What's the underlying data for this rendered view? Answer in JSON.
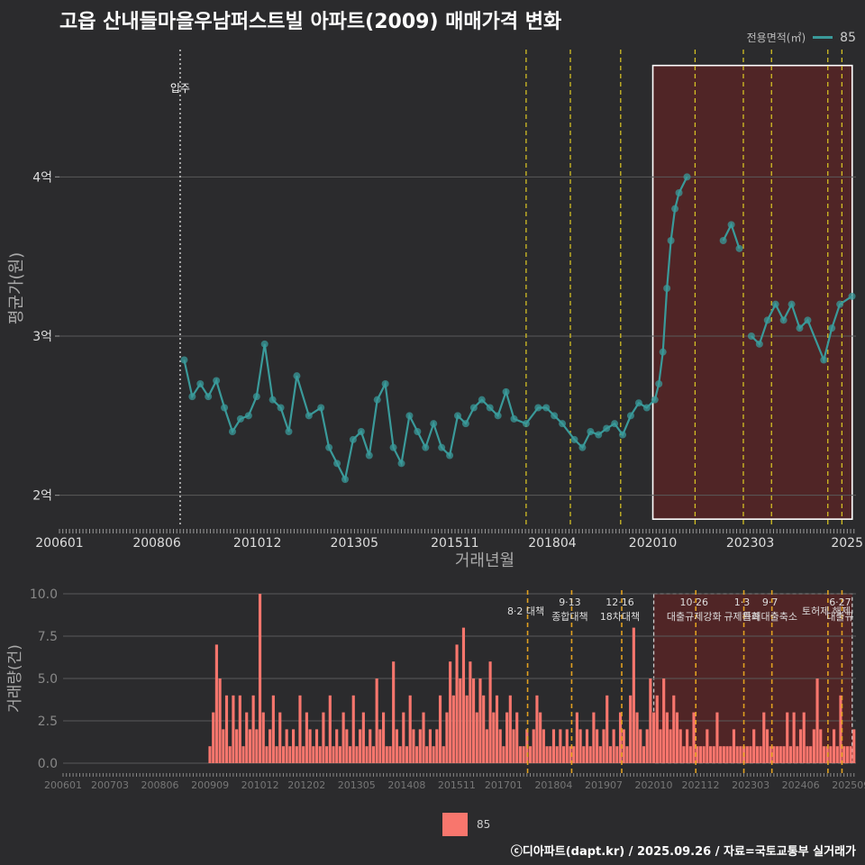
{
  "title": "고읍 산내들마을우남퍼스트빌 아파트(2009) 매매가격 변화",
  "legend": {
    "title": "전용면적(㎡)",
    "series_label": "85"
  },
  "credit": "ⓒ디아파트(dapt.kr) / 2025.09.26 / 자료=국토교통부 실거래가",
  "colors": {
    "background": "#2b2b2d",
    "price": "#3a9a9a",
    "volume": "#f8766d",
    "policy": "#d4c024",
    "highlight": "#5a2424",
    "mark": "#ff2222"
  },
  "chart_data": [
    {
      "type": "line",
      "title": "고읍 산내들마을우남퍼스트빌 아파트(2009) 매매가격 변화",
      "xlabel": "거래년월",
      "ylabel": "평균가(원)",
      "x_tick_labels": [
        "200601",
        "200806",
        "201012",
        "201305",
        "201511",
        "201804",
        "202010",
        "202303",
        "2025"
      ],
      "y_tick_labels": [
        "2억",
        "3억",
        "4억"
      ],
      "y_ticks": [
        2.0,
        3.0,
        4.0
      ],
      "ylim": [
        1.8,
        4.8
      ],
      "xlim": [
        2006.0,
        2025.8
      ],
      "grid": true,
      "annotation": {
        "text": "입주",
        "x": 2009.0
      },
      "highlight_range": [
        2020.75,
        2025.75
      ],
      "policy_dates": [
        2017.6,
        2018.7,
        2019.95,
        2021.8,
        2023.0,
        2023.7,
        2025.1,
        2025.45
      ],
      "series": [
        {
          "name": "85",
          "unit": "억원",
          "points": [
            [
              2009.1,
              2.85
            ],
            [
              2009.3,
              2.62
            ],
            [
              2009.5,
              2.7
            ],
            [
              2009.7,
              2.62
            ],
            [
              2009.9,
              2.72
            ],
            [
              2010.1,
              2.55
            ],
            [
              2010.3,
              2.4
            ],
            [
              2010.5,
              2.48
            ],
            [
              2010.7,
              2.5
            ],
            [
              2010.9,
              2.62
            ],
            [
              2011.1,
              2.95
            ],
            [
              2011.3,
              2.6
            ],
            [
              2011.5,
              2.55
            ],
            [
              2011.7,
              2.4
            ],
            [
              2011.9,
              2.75
            ],
            [
              2012.2,
              2.5
            ],
            [
              2012.5,
              2.55
            ],
            [
              2012.7,
              2.3
            ],
            [
              2012.9,
              2.2
            ],
            [
              2013.1,
              2.1
            ],
            [
              2013.3,
              2.35
            ],
            [
              2013.5,
              2.4
            ],
            [
              2013.7,
              2.25
            ],
            [
              2013.9,
              2.6
            ],
            [
              2014.1,
              2.7
            ],
            [
              2014.3,
              2.3
            ],
            [
              2014.5,
              2.2
            ],
            [
              2014.7,
              2.5
            ],
            [
              2014.9,
              2.4
            ],
            [
              2015.1,
              2.3
            ],
            [
              2015.3,
              2.45
            ],
            [
              2015.5,
              2.3
            ],
            [
              2015.7,
              2.25
            ],
            [
              2015.9,
              2.5
            ],
            [
              2016.1,
              2.45
            ],
            [
              2016.3,
              2.55
            ],
            [
              2016.5,
              2.6
            ],
            [
              2016.7,
              2.55
            ],
            [
              2016.9,
              2.5
            ],
            [
              2017.1,
              2.65
            ],
            [
              2017.3,
              2.48
            ],
            [
              2017.6,
              2.45
            ],
            [
              2017.9,
              2.55
            ],
            [
              2018.1,
              2.55
            ],
            [
              2018.3,
              2.5
            ],
            [
              2018.5,
              2.45
            ],
            [
              2018.8,
              2.35
            ],
            [
              2019.0,
              2.3
            ],
            [
              2019.2,
              2.4
            ],
            [
              2019.4,
              2.38
            ],
            [
              2019.6,
              2.42
            ],
            [
              2019.8,
              2.45
            ],
            [
              2020.0,
              2.38
            ],
            [
              2020.2,
              2.5
            ],
            [
              2020.4,
              2.58
            ],
            [
              2020.6,
              2.55
            ],
            [
              2020.8,
              2.6
            ],
            [
              2020.9,
              2.7
            ],
            [
              2021.0,
              2.9
            ],
            [
              2021.1,
              3.3
            ],
            [
              2021.2,
              3.6
            ],
            [
              2021.3,
              3.8
            ],
            [
              2021.4,
              3.9
            ],
            [
              2021.6,
              4.0
            ],
            [
              2022.5,
              3.6
            ],
            [
              2022.7,
              3.7
            ],
            [
              2022.9,
              3.55
            ],
            [
              2023.2,
              3.0
            ],
            [
              2023.4,
              2.95
            ],
            [
              2023.6,
              3.1
            ],
            [
              2023.8,
              3.2
            ],
            [
              2024.0,
              3.1
            ],
            [
              2024.2,
              3.2
            ],
            [
              2024.4,
              3.05
            ],
            [
              2024.6,
              3.1
            ],
            [
              2025.0,
              2.85
            ],
            [
              2025.2,
              3.05
            ],
            [
              2025.4,
              3.2
            ],
            [
              2025.7,
              3.25
            ]
          ]
        }
      ]
    },
    {
      "type": "bar",
      "xlabel": "",
      "ylabel": "거래량(건)",
      "x_tick_labels": [
        "200601",
        "200703",
        "200806",
        "200909",
        "201012",
        "201202",
        "201305",
        "201408",
        "201511",
        "201701",
        "201804",
        "201907",
        "202010",
        "202112",
        "202303",
        "202406",
        "202509"
      ],
      "y_tick_labels": [
        "0.0",
        "2.5",
        "5.0",
        "7.5",
        "10.0"
      ],
      "y_ticks": [
        0,
        2.5,
        5.0,
        7.5,
        10.0
      ],
      "ylim": [
        0,
        10
      ],
      "grid": true,
      "highlight_range": [
        2020.75,
        2025.75
      ],
      "policy_annotations": [
        {
          "x": 2017.6,
          "lines": [
            "8·2 대책"
          ]
        },
        {
          "x": 2018.7,
          "lines": [
            "9·13",
            "종합대책"
          ]
        },
        {
          "x": 2019.95,
          "lines": [
            "12·16",
            "18차대책"
          ]
        },
        {
          "x": 2021.8,
          "lines": [
            "10·26",
            "대출규제강화"
          ]
        },
        {
          "x": 2023.0,
          "lines": [
            "1·3",
            "규제완화"
          ]
        },
        {
          "x": 2023.7,
          "lines": [
            "9·7",
            "특례대출축소"
          ]
        },
        {
          "x": 2025.1,
          "lines": [
            "토허제 해제"
          ]
        },
        {
          "x": 2025.45,
          "lines": [
            "6·27",
            "대출규"
          ]
        }
      ],
      "series": [
        {
          "name": "85",
          "start": 2009.667,
          "step_months": 1,
          "values": [
            1,
            3,
            7,
            5,
            2,
            4,
            1,
            4,
            2,
            4,
            1,
            3,
            2,
            4,
            2,
            10,
            3,
            1,
            2,
            4,
            1,
            3,
            1,
            2,
            1,
            2,
            1,
            4,
            1,
            3,
            2,
            1,
            2,
            1,
            3,
            1,
            4,
            1,
            2,
            1,
            3,
            2,
            1,
            4,
            1,
            2,
            3,
            1,
            2,
            1,
            5,
            2,
            3,
            1,
            1,
            6,
            2,
            1,
            3,
            1,
            4,
            2,
            1,
            2,
            3,
            1,
            2,
            1,
            2,
            4,
            1,
            3,
            6,
            4,
            7,
            5,
            8,
            4,
            6,
            5,
            3,
            5,
            4,
            2,
            6,
            3,
            4,
            2,
            1,
            3,
            4,
            2,
            3,
            1,
            1,
            2,
            1,
            2,
            4,
            3,
            2,
            1,
            1,
            2,
            1,
            2,
            1,
            2,
            1,
            1,
            3,
            2,
            1,
            2,
            1,
            3,
            2,
            1,
            2,
            4,
            1,
            2,
            1,
            3,
            2,
            1,
            4,
            8,
            3,
            2,
            1,
            2,
            5,
            3,
            4,
            2,
            5,
            3,
            2,
            4,
            3,
            2,
            1,
            2,
            1,
            3,
            1,
            1,
            1,
            2,
            1,
            1,
            3,
            1,
            1,
            1,
            1,
            2,
            1,
            1,
            1,
            1,
            1,
            2,
            1,
            1,
            3,
            2,
            1,
            1,
            1,
            1,
            1,
            3,
            1,
            3,
            1,
            2,
            3,
            1,
            1,
            2,
            5,
            2,
            1,
            1,
            1,
            2,
            1,
            4,
            1,
            1,
            1,
            2
          ]
        }
      ]
    }
  ]
}
